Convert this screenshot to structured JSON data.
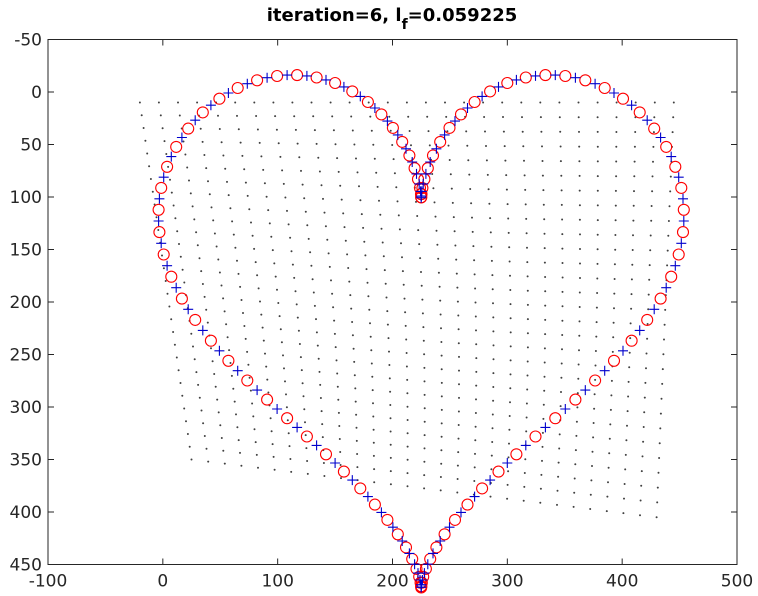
{
  "chart_data": {
    "type": "scatter",
    "title_main": "iteration=6,  l",
    "title_sub": "f",
    "title_value": "=0.059225",
    "xlim": [
      -100,
      500
    ],
    "ylim": [
      -50,
      450
    ],
    "y_direction": "reversed",
    "x_ticks": [
      -100,
      0,
      100,
      200,
      300,
      400,
      500
    ],
    "y_ticks": [
      -50,
      0,
      50,
      100,
      150,
      200,
      250,
      300,
      350,
      400,
      450
    ],
    "x_tick_labels": [
      "-100",
      "0",
      "100",
      "200",
      "300",
      "400",
      "500"
    ],
    "y_tick_labels": [
      "-50",
      "0",
      "50",
      "100",
      "150",
      "200",
      "250",
      "300",
      "350",
      "400",
      "450"
    ],
    "grid": false,
    "legend": "none",
    "colors": {
      "circles": "#ff0000",
      "crosses": "#0000cc",
      "grid_dots": "#404040",
      "axes": "#262626"
    },
    "grid_points": {
      "rows": 29,
      "cols": 29,
      "corners": {
        "top_left": [
          -20,
          10
        ],
        "top_right": [
          445,
          10
        ],
        "bottom_left": [
          25,
          350
        ],
        "bottom_right": [
          430,
          405
        ]
      },
      "row_bow": {
        "top_left": [
          8,
          3
        ],
        "bottom_right": [
          -22,
          -8
        ]
      }
    },
    "heart_center_x": 225,
    "heart_center_y": 185,
    "heart_scale": 14.3,
    "heart_y_squash": 1.18,
    "heart_rotation_deg": 0,
    "num_circles": 95,
    "num_crosses": 95,
    "circle_phase": 0.5
  }
}
